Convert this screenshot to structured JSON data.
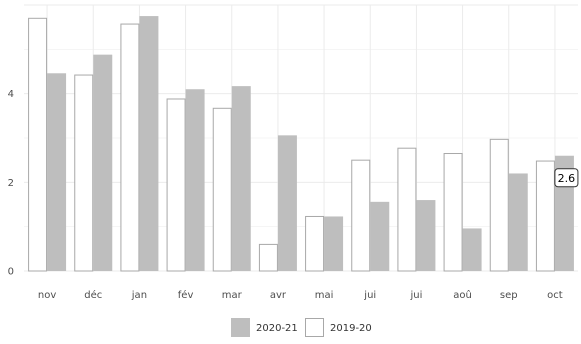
{
  "chart_data": {
    "type": "bar",
    "categories": [
      "nov",
      "déc",
      "jan",
      "fév",
      "mar",
      "avr",
      "mai",
      "jui",
      "jui",
      "aoû",
      "sep",
      "oct"
    ],
    "series": [
      {
        "name": "2019-20",
        "values": [
          5.7,
          4.42,
          5.57,
          3.88,
          3.67,
          0.6,
          1.23,
          2.5,
          2.77,
          2.65,
          2.97,
          2.48
        ]
      },
      {
        "name": "2020-21",
        "values": [
          4.46,
          4.88,
          5.75,
          4.1,
          4.17,
          3.06,
          1.23,
          1.56,
          1.6,
          0.96,
          2.2,
          2.6
        ]
      }
    ],
    "ylim": [
      0,
      6
    ],
    "yticks": [
      "0",
      "2",
      "4"
    ],
    "grid": true,
    "legend_position": "bottom",
    "tooltip": {
      "label": "2.6",
      "series": "2020-21",
      "category_index": 11
    }
  },
  "colors": {
    "series_2020_21": "#bebebe",
    "series_2019_20": "#ffffff",
    "outline_2019_20": "#a8a8a8",
    "grid": "#ebebeb",
    "tick_text": "#4d4d4d"
  }
}
